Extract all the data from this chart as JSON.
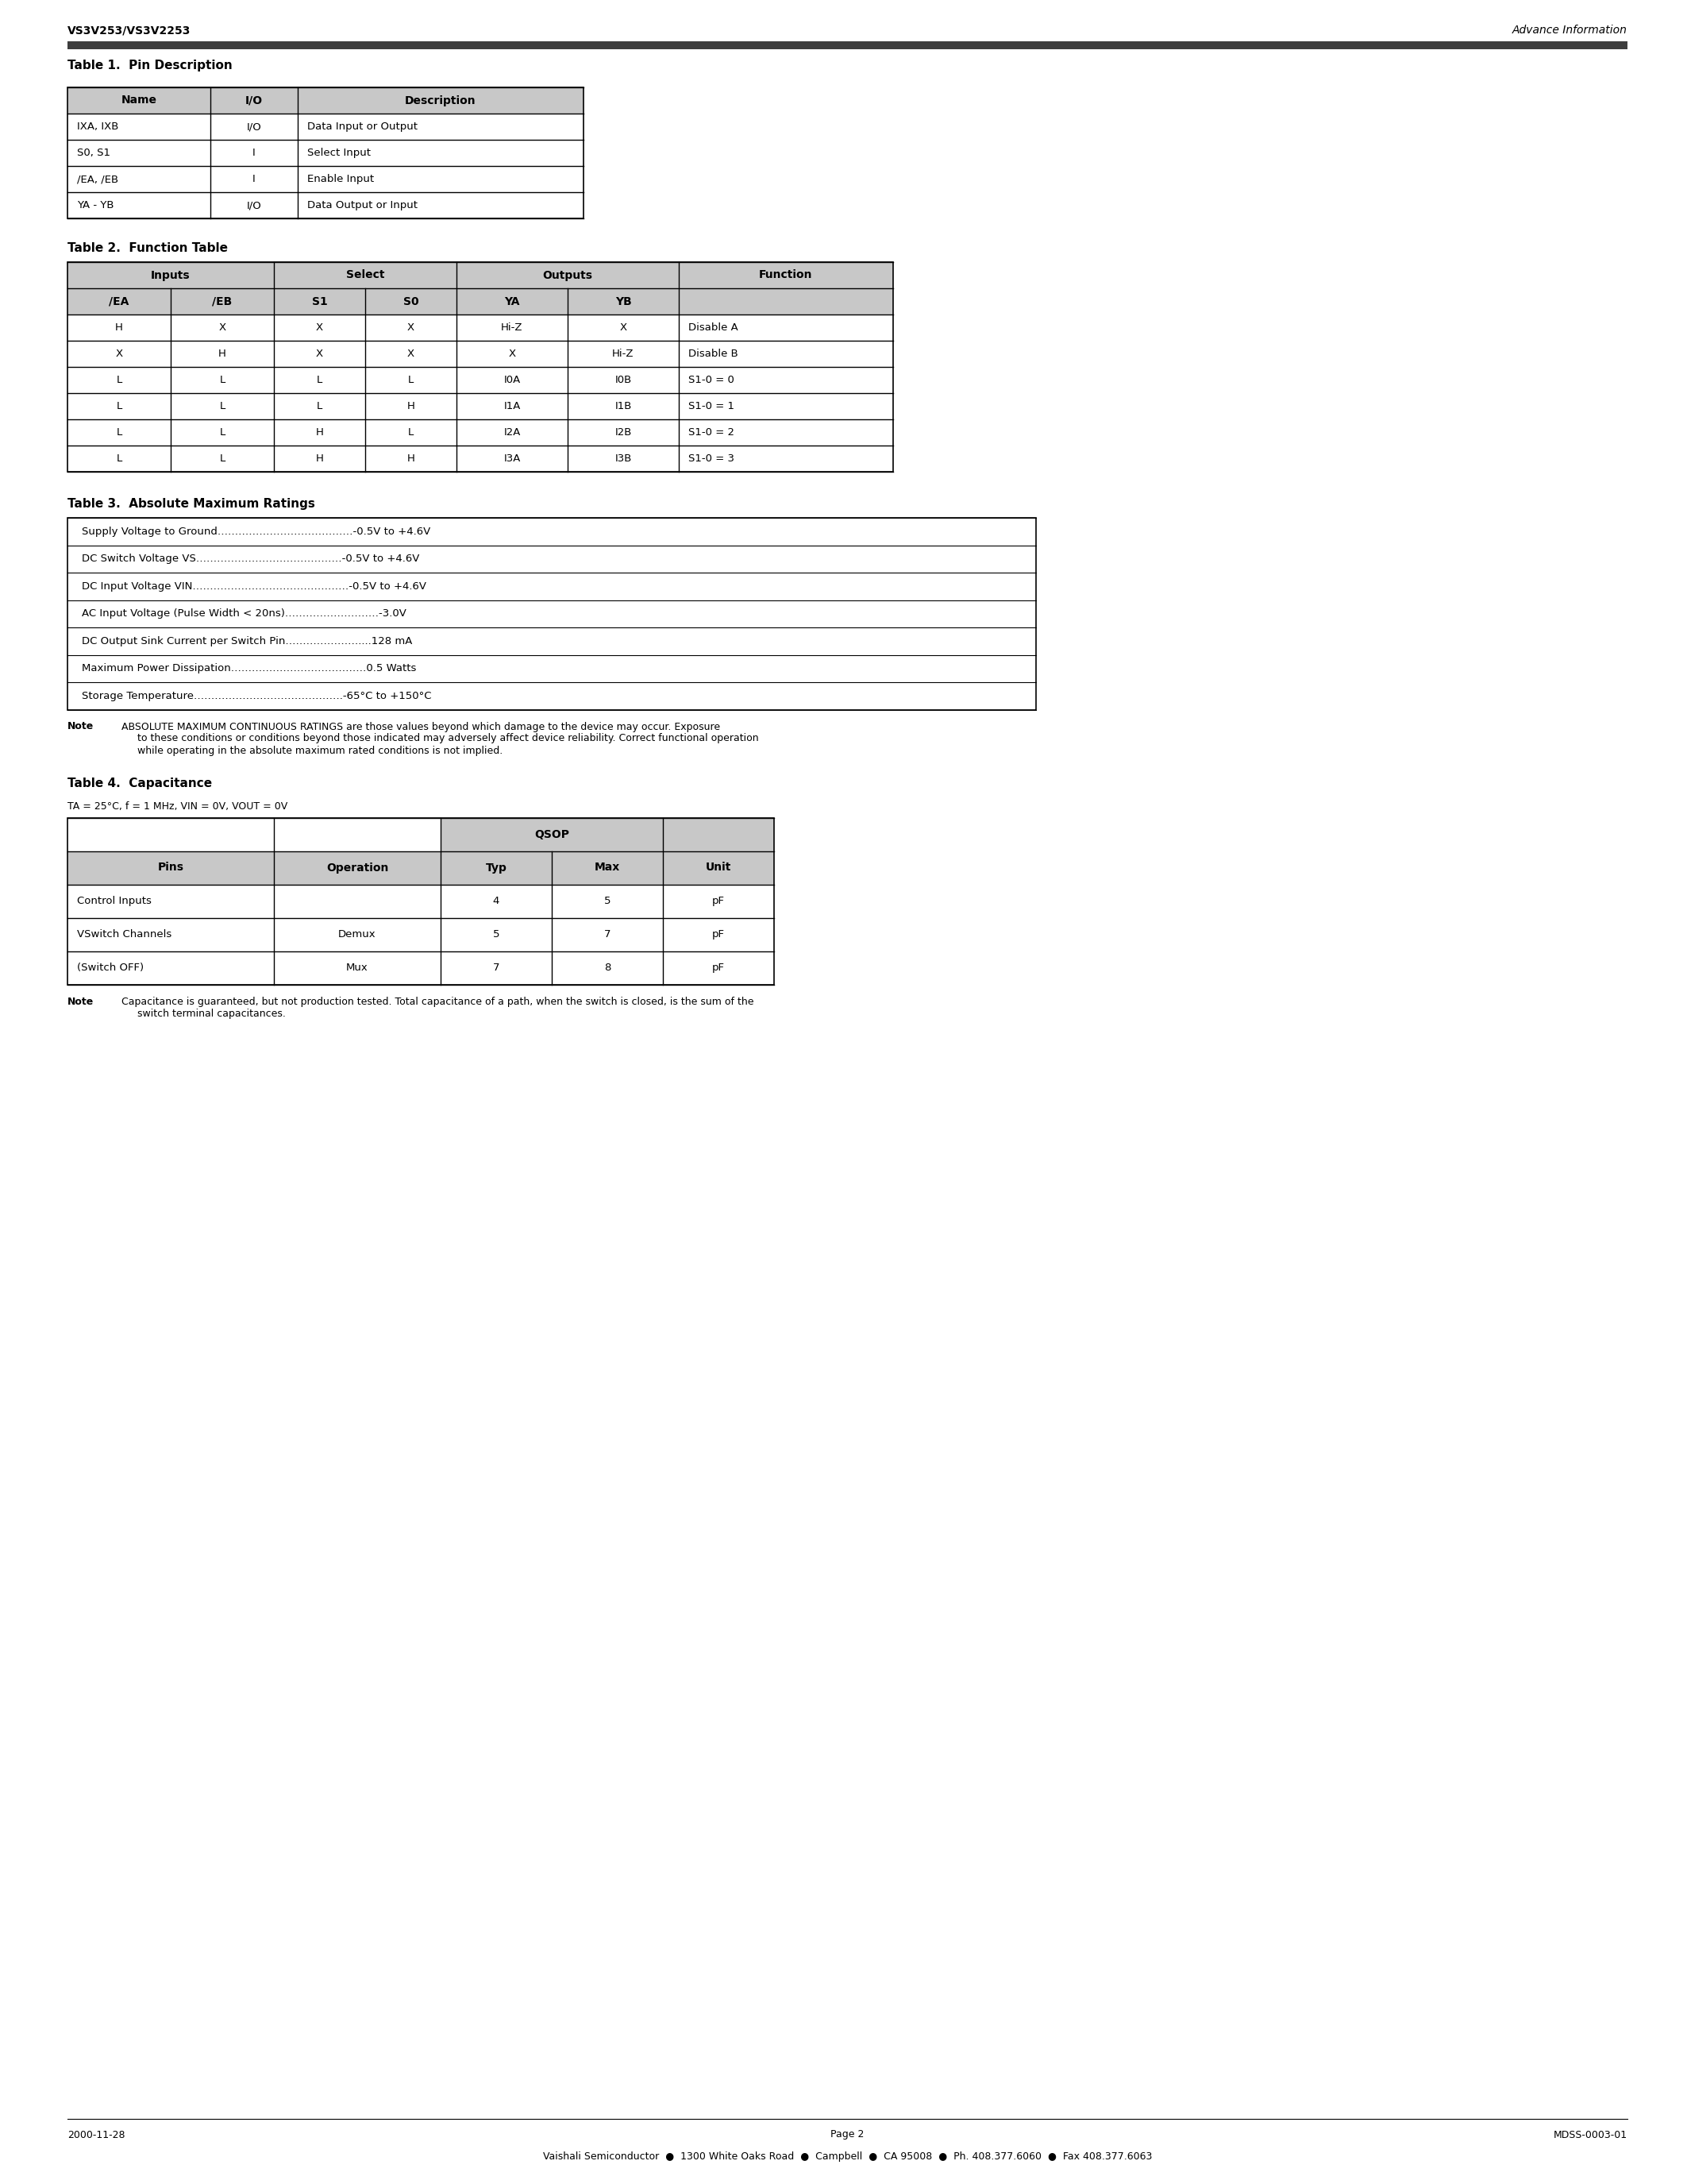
{
  "page_title_left": "VS3V253/VS3V2253",
  "page_title_right": "Advance Information",
  "header_bar_color": "#3d3d3d",
  "bg_color": "#ffffff",
  "table1_title": "Table 1.  Pin Description",
  "table1_headers": [
    "Name",
    "I/O",
    "Description"
  ],
  "table1_rows": [
    [
      "IXA, IXB",
      "I/O",
      "Data Input or Output"
    ],
    [
      "S0, S1",
      "I",
      "Select Input"
    ],
    [
      "/EA, /EB",
      "I",
      "Enable Input"
    ],
    [
      "YA - YB",
      "I/O",
      "Data Output or Input"
    ]
  ],
  "table2_title": "Table 2.  Function Table",
  "table2_rows": [
    [
      "H",
      "X",
      "X",
      "X",
      "Hi-Z",
      "X",
      "Disable A"
    ],
    [
      "X",
      "H",
      "X",
      "X",
      "X",
      "Hi-Z",
      "Disable B"
    ],
    [
      "L",
      "L",
      "L",
      "L",
      "I0A",
      "I0B",
      "S1-0 = 0"
    ],
    [
      "L",
      "L",
      "L",
      "H",
      "I1A",
      "I1B",
      "S1-0 = 1"
    ],
    [
      "L",
      "L",
      "H",
      "L",
      "I2A",
      "I2B",
      "S1-0 = 2"
    ],
    [
      "L",
      "L",
      "H",
      "H",
      "I3A",
      "I3B",
      "S1-0 = 3"
    ]
  ],
  "table3_title": "Table 3.  Absolute Maximum Ratings",
  "table3_rows": [
    "Supply Voltage to Ground…………………………………-0.5V to +4.6V",
    "DC Switch Voltage VS……………………………………-0.5V to +4.6V",
    "DC Input Voltage VIN………………………………………-0.5V to +4.6V",
    "AC Input Voltage (Pulse Width < 20ns)………………………-3.0V",
    "DC Output Sink Current per Switch Pin…………………....128 mA",
    "Maximum Power Dissipation…………………………………0.5 Watts",
    "Storage Temperature…………………………………….-65°C to +150°C"
  ],
  "table3_note_bold": "Note",
  "table3_note_rest": "  ABSOLUTE MAXIMUM CONTINUOUS RATINGS are those values beyond which damage to the device may occur. Exposure\n       to these conditions or conditions beyond those indicated may adversely affect device reliability. Correct functional operation\n       while operating in the absolute maximum rated conditions is not implied.",
  "table4_title": "Table 4.  Capacitance",
  "table4_subtitle": "Tₐ = 25°C, f = 1 MHz, Vᴵₙ = 0V, Vₒᵁᵀ = 0V",
  "table4_subtitle_plain": "TA = 25°C, f = 1 MHz, VIN = 0V, VOUT = 0V",
  "table4_headers": [
    "Pins",
    "Operation",
    "Typ",
    "Max",
    "Unit"
  ],
  "table4_rows": [
    [
      "Control Inputs",
      "",
      "4",
      "5",
      "pF"
    ],
    [
      "VSwitch Channels",
      "Demux",
      "5",
      "7",
      "pF"
    ],
    [
      "(Switch OFF)",
      "Mux",
      "7",
      "8",
      "pF"
    ]
  ],
  "table4_note_bold": "Note",
  "table4_note_rest": "  Capacitance is guaranteed, but not production tested. Total capacitance of a path, when the switch is closed, is the sum of the\n       switch terminal capacitances.",
  "footer_left": "2000-11-28",
  "footer_center": "Page 2",
  "footer_right": "MDSS-0003-01",
  "footer_company": "Vaishali Semiconductor  ●  1300 White Oaks Road  ●  Campbell  ●  CA 95008  ●  Ph. 408.377.6060  ●  Fax 408.377.6063"
}
